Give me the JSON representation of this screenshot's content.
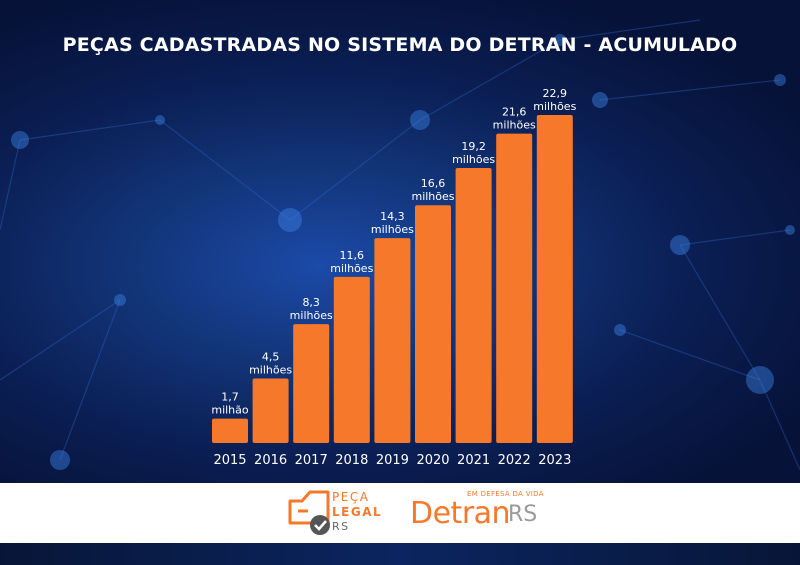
{
  "colors": {
    "bar": "#f6792b",
    "background": "#0b1f55",
    "text": "#ffffff",
    "logo_accent": "#f6792b"
  },
  "chart_data": {
    "type": "bar",
    "title": "PEÇAS CADASTRADAS NO SISTEMA DO DETRAN - ACUMULADO",
    "xlabel": "",
    "ylabel": "",
    "ylim": [
      0,
      24
    ],
    "grid": false,
    "categories": [
      "2015",
      "2016",
      "2017",
      "2018",
      "2019",
      "2020",
      "2021",
      "2022",
      "2023"
    ],
    "values": [
      1.7,
      4.5,
      8.3,
      11.6,
      14.3,
      16.6,
      19.2,
      21.6,
      22.9
    ],
    "value_labels": [
      "1,7",
      "4,5",
      "8,3",
      "11,6",
      "14,3",
      "16,6",
      "19,2",
      "21,6",
      "22,9"
    ],
    "unit_labels": [
      "milhão",
      "milhões",
      "milhões",
      "milhões",
      "milhões",
      "milhões",
      "milhões",
      "milhões",
      "milhões"
    ]
  },
  "footer": {
    "peca_legal": {
      "line1": "PEÇA",
      "line2": "LEGAL",
      "line3": "RS"
    },
    "detran": {
      "tagline": "EM DEFESA DA VIDA",
      "name": "Detran",
      "suffix": "RS"
    }
  }
}
